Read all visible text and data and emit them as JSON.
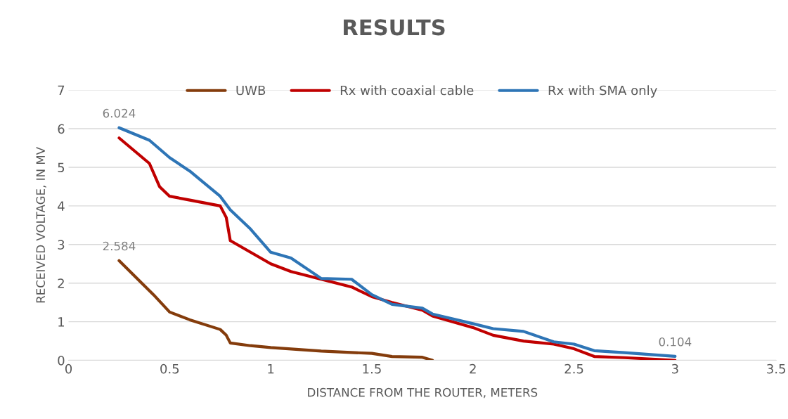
{
  "chart_data": {
    "type": "line",
    "title": "RESULTS",
    "xlabel": "DISTANCE FROM THE ROUTER, METERS",
    "ylabel": "RECEIVED VOLTAGE, IN MV",
    "xlim": [
      0,
      3.5
    ],
    "xticks": [
      0,
      0.5,
      1,
      1.5,
      2,
      2.5,
      3,
      3.5
    ],
    "ylim": [
      0,
      7
    ],
    "yticks": [
      0,
      1,
      2,
      3,
      4,
      5,
      6,
      7
    ],
    "grid": "y",
    "legend": "top",
    "marker": "none",
    "line_style": "solid",
    "series": [
      {
        "name": "UWB",
        "color": "#843c0c",
        "x": [
          0.25,
          0.42,
          0.5,
          0.6,
          0.75,
          0.78,
          0.8,
          0.9,
          1.0,
          1.25,
          1.5,
          1.6,
          1.75,
          1.8
        ],
        "values": [
          2.584,
          1.7,
          1.25,
          1.05,
          0.8,
          0.65,
          0.45,
          0.38,
          0.33,
          0.24,
          0.18,
          0.1,
          0.08,
          0.0
        ],
        "value_labels": [
          "2.584",
          null,
          null,
          null,
          null,
          null,
          null,
          null,
          null,
          null,
          null,
          null,
          null,
          null
        ]
      },
      {
        "name": "Rx with coaxial cable",
        "color": "#c00000",
        "x": [
          0.25,
          0.4,
          0.45,
          0.5,
          0.6,
          0.75,
          0.78,
          0.8,
          0.9,
          1.0,
          1.1,
          1.25,
          1.4,
          1.5,
          1.6,
          1.75,
          1.8,
          2.0,
          2.1,
          2.25,
          2.4,
          2.5,
          2.6,
          2.75,
          3.0
        ],
        "values": [
          5.76,
          5.1,
          4.5,
          4.25,
          4.15,
          4.0,
          3.7,
          3.1,
          2.8,
          2.5,
          2.3,
          2.1,
          1.9,
          1.65,
          1.5,
          1.3,
          1.15,
          0.85,
          0.65,
          0.5,
          0.42,
          0.3,
          0.1,
          0.07,
          0.0
        ]
      },
      {
        "name": "Rx with SMA only",
        "color": "#2e75b6",
        "x": [
          0.25,
          0.4,
          0.5,
          0.6,
          0.75,
          0.8,
          0.9,
          1.0,
          1.1,
          1.25,
          1.4,
          1.5,
          1.6,
          1.75,
          1.8,
          2.0,
          2.1,
          2.25,
          2.4,
          2.5,
          2.6,
          2.75,
          3.0
        ],
        "values": [
          6.024,
          5.7,
          5.25,
          4.9,
          4.25,
          3.9,
          3.4,
          2.8,
          2.65,
          2.12,
          2.1,
          1.7,
          1.45,
          1.35,
          1.2,
          0.95,
          0.82,
          0.75,
          0.48,
          0.42,
          0.25,
          0.2,
          0.104
        ],
        "value_labels": [
          "6.024",
          null,
          null,
          null,
          null,
          null,
          null,
          null,
          null,
          null,
          null,
          null,
          null,
          null,
          null,
          null,
          null,
          null,
          null,
          null,
          null,
          null,
          "0.104"
        ]
      }
    ]
  }
}
